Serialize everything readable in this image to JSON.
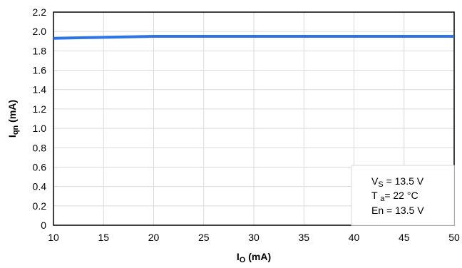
{
  "chart_data": {
    "type": "line",
    "title": "",
    "xlabel": {
      "main": "I",
      "sub": "O",
      "suffix": " (mA)"
    },
    "ylabel": {
      "main": "I",
      "sub": "qn",
      "suffix": " (mA)"
    },
    "xlim": [
      10,
      50
    ],
    "ylim": [
      0,
      2.2
    ],
    "x_ticks": [
      10,
      15,
      20,
      25,
      30,
      35,
      40,
      45,
      50
    ],
    "x_tick_labels": [
      "10",
      "15",
      "20",
      "25",
      "30",
      "35",
      "40",
      "45",
      "50"
    ],
    "y_ticks": [
      0,
      0.2,
      0.4,
      0.6,
      0.8,
      1.0,
      1.2,
      1.4,
      1.6,
      1.8,
      2.0,
      2.2
    ],
    "y_tick_labels": [
      "0",
      "0.2",
      "0.4",
      "0.6",
      "0.8",
      "1.0",
      "1.2",
      "1.4",
      "1.6",
      "1.8",
      "2.0",
      "2.2"
    ],
    "grid": true,
    "series": [
      {
        "color": "#2f74e6",
        "x": [
          10,
          15,
          20,
          25,
          30,
          35,
          40,
          45,
          50
        ],
        "y": [
          1.93,
          1.94,
          1.95,
          1.95,
          1.95,
          1.95,
          1.95,
          1.95,
          1.95
        ]
      }
    ],
    "annotation": {
      "position": "bottom-right",
      "lines": [
        {
          "main": "V",
          "sub": "S",
          "rest": " = 13.5 V"
        },
        {
          "main": "T ",
          "sub": "a",
          "rest": "= 22 °C"
        },
        {
          "main": "En",
          "sub": "",
          "rest": " = 13.5 V"
        }
      ]
    }
  }
}
